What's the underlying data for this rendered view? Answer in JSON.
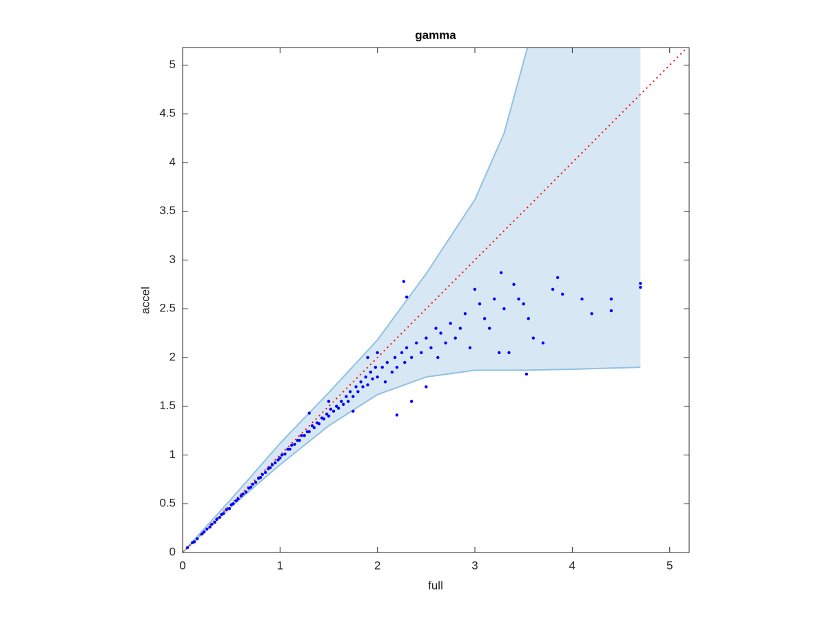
{
  "chart_data": {
    "type": "scatter",
    "title": "gamma",
    "x_label": "full",
    "y_label": "accel",
    "xlim": [
      0,
      5.2
    ],
    "ylim": [
      0,
      5.18
    ],
    "xticks": [
      0,
      1,
      2,
      3,
      4,
      5
    ],
    "yticks": [
      0,
      0.5,
      1,
      1.5,
      2,
      2.5,
      3,
      3.5,
      4,
      4.5,
      5
    ],
    "band": {
      "color": "#d7e7f3",
      "edge_color": "#8fc1e2",
      "upper": {
        "x": [
          0,
          0.5,
          1,
          1.5,
          2,
          2.5,
          3,
          3.3,
          3.54
        ],
        "y": [
          0,
          0.55,
          1.12,
          1.64,
          2.18,
          2.86,
          3.62,
          4.3,
          5.18
        ]
      },
      "lower": {
        "x": [
          0,
          0.5,
          1,
          1.5,
          2,
          2.5,
          3,
          3.5,
          4,
          4.7
        ],
        "y": [
          0,
          0.47,
          0.9,
          1.3,
          1.62,
          1.8,
          1.87,
          1.87,
          1.88,
          1.9
        ]
      }
    },
    "reference_line": {
      "color": "#ff0000",
      "x": [
        0,
        5.18
      ],
      "y": [
        0,
        5.18
      ]
    },
    "series": [
      {
        "color": "#0000ff",
        "x": [
          0.05,
          0.1,
          0.12,
          0.15,
          0.2,
          0.22,
          0.25,
          0.28,
          0.3,
          0.33,
          0.35,
          0.38,
          0.4,
          0.42,
          0.45,
          0.48,
          0.5,
          0.52,
          0.55,
          0.57,
          0.6,
          0.62,
          0.65,
          0.68,
          0.7,
          0.72,
          0.75,
          0.78,
          0.8,
          0.82,
          0.85,
          0.88,
          0.9,
          0.92,
          0.95,
          0.98,
          1.0,
          1.02,
          1.05,
          1.08,
          1.1,
          1.12,
          1.15,
          1.18,
          1.2,
          1.22,
          1.25,
          1.28,
          1.3,
          1.33,
          1.35,
          1.38,
          1.4,
          1.43,
          1.45,
          1.48,
          1.5,
          1.52,
          1.55,
          1.58,
          1.6,
          1.63,
          1.65,
          1.68,
          1.7,
          1.72,
          1.75,
          1.78,
          1.8,
          1.83,
          1.85,
          1.88,
          1.9,
          1.93,
          1.95,
          1.98,
          2.0,
          2.05,
          2.08,
          2.1,
          2.15,
          2.18,
          2.2,
          2.25,
          2.28,
          2.3,
          2.35,
          2.4,
          2.45,
          2.5,
          2.55,
          2.6,
          2.62,
          2.65,
          2.7,
          2.75,
          2.8,
          2.85,
          2.9,
          2.95,
          3.0,
          3.05,
          3.1,
          3.15,
          3.2,
          3.27,
          3.3,
          3.35,
          3.4,
          3.45,
          3.5,
          3.55,
          3.6,
          3.7,
          3.8,
          3.85,
          3.9,
          4.1,
          4.2,
          4.4,
          4.4,
          4.7,
          4.7,
          2.27,
          2.2,
          1.3,
          1.5,
          1.9,
          2.35,
          2.5,
          3.53,
          3.25,
          2.3,
          2.0,
          1.75
        ],
        "y": [
          0.05,
          0.1,
          0.11,
          0.14,
          0.19,
          0.21,
          0.24,
          0.26,
          0.29,
          0.31,
          0.34,
          0.36,
          0.39,
          0.4,
          0.44,
          0.45,
          0.49,
          0.5,
          0.53,
          0.55,
          0.58,
          0.6,
          0.62,
          0.66,
          0.67,
          0.7,
          0.72,
          0.76,
          0.77,
          0.8,
          0.82,
          0.86,
          0.87,
          0.9,
          0.92,
          0.95,
          0.97,
          1.0,
          1.01,
          1.06,
          1.06,
          1.1,
          1.11,
          1.15,
          1.15,
          1.2,
          1.2,
          1.24,
          1.24,
          1.3,
          1.28,
          1.33,
          1.32,
          1.38,
          1.37,
          1.42,
          1.4,
          1.47,
          1.45,
          1.5,
          1.48,
          1.55,
          1.52,
          1.6,
          1.55,
          1.65,
          1.6,
          1.7,
          1.65,
          1.75,
          1.7,
          1.8,
          1.72,
          1.85,
          1.78,
          1.9,
          1.8,
          1.9,
          1.75,
          1.95,
          1.85,
          2.0,
          1.9,
          2.05,
          1.95,
          2.1,
          2.0,
          2.15,
          2.05,
          2.2,
          2.1,
          2.3,
          2.0,
          2.25,
          2.15,
          2.35,
          2.2,
          2.3,
          2.45,
          2.1,
          2.7,
          2.55,
          2.4,
          2.3,
          2.6,
          2.87,
          2.5,
          2.05,
          2.75,
          2.6,
          2.55,
          2.4,
          2.2,
          2.15,
          2.7,
          2.82,
          2.65,
          2.6,
          2.45,
          2.6,
          2.48,
          2.76,
          2.72,
          2.78,
          1.41,
          1.43,
          1.55,
          2.0,
          1.55,
          1.7,
          1.83,
          2.05,
          2.62,
          2.05,
          1.45
        ]
      }
    ]
  }
}
